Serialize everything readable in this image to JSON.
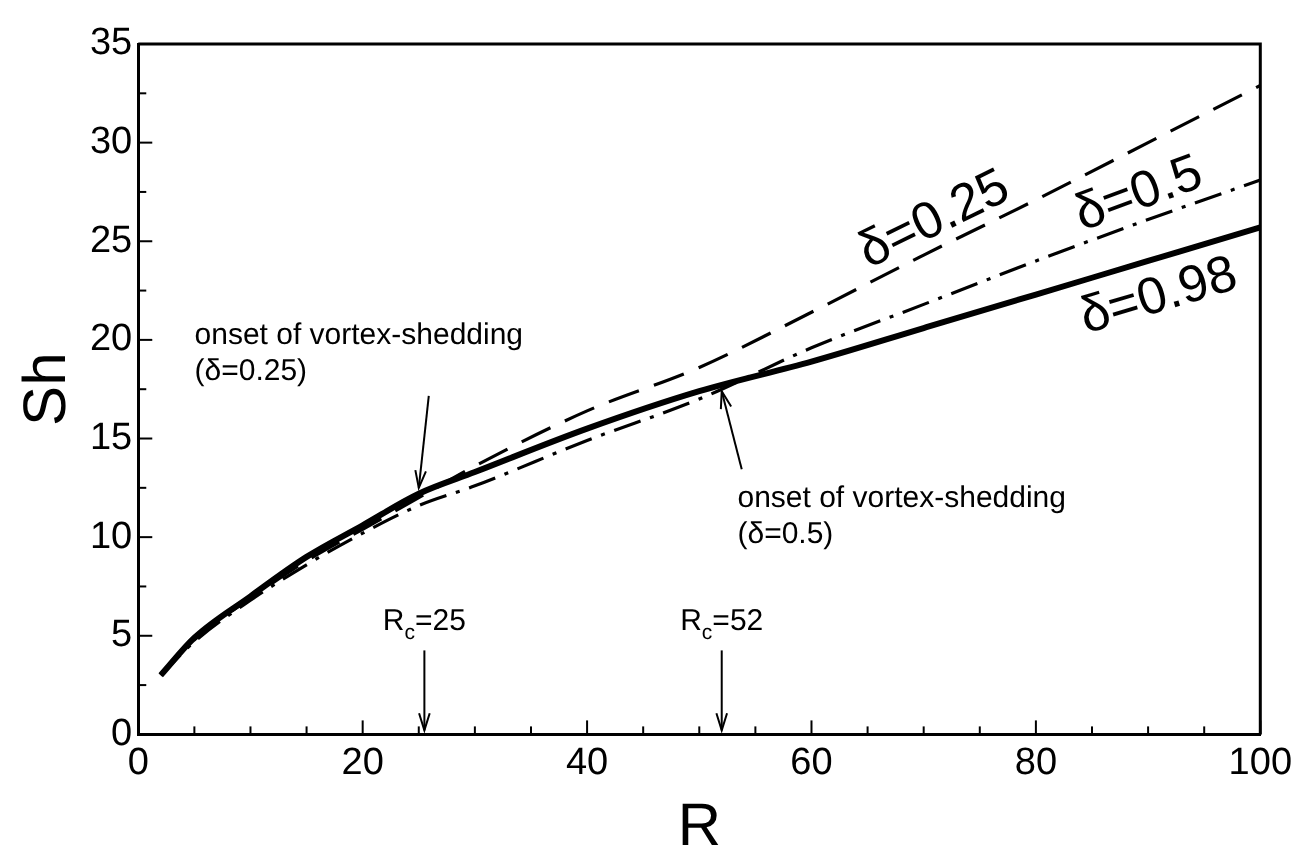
{
  "chart_data": {
    "type": "line",
    "xlabel": "R",
    "ylabel": "Sh",
    "xlim": [
      0,
      100
    ],
    "xticks": [
      0,
      {
        "value": 5,
        "label": null
      },
      {
        "value": 10,
        "label": null
      },
      {
        "value": 15,
        "label": null
      },
      20,
      {
        "value": 25,
        "label": null
      },
      {
        "value": 30,
        "label": null
      },
      {
        "value": 35,
        "label": null
      },
      40,
      {
        "value": 45,
        "label": null
      },
      {
        "value": 50,
        "label": null
      },
      {
        "value": 55,
        "label": null
      },
      60,
      {
        "value": 65,
        "label": null
      },
      {
        "value": 70,
        "label": null
      },
      {
        "value": 75,
        "label": null
      },
      80,
      {
        "value": 85,
        "label": null
      },
      {
        "value": 90,
        "label": null
      },
      {
        "value": 95,
        "label": null
      },
      100
    ],
    "ylim": [
      0,
      35
    ],
    "yticks": [
      0,
      {
        "value": 2.5,
        "label": null
      },
      5,
      {
        "value": 7.5,
        "label": null
      },
      10,
      {
        "value": 12.5,
        "label": null
      },
      15,
      {
        "value": 17.5,
        "label": null
      },
      20,
      {
        "value": 22.5,
        "label": null
      },
      25,
      {
        "value": 27.5,
        "label": null
      },
      30,
      {
        "value": 32.5,
        "label": null
      },
      35
    ],
    "grid": false,
    "legend": false,
    "marker": "none",
    "x": [
      2,
      5,
      10,
      15,
      20,
      25,
      30,
      40,
      50,
      60,
      70,
      80,
      90,
      100
    ],
    "series": [
      {
        "name": "δ=0.25",
        "color": "#000000",
        "line_style": "dashed",
        "values": [
          3.0,
          4.8,
          6.9,
          8.8,
          10.4,
          12.0,
          13.6,
          16.4,
          18.6,
          21.4,
          24.3,
          27.1,
          30.0,
          32.9
        ]
      },
      {
        "name": "δ=0.5",
        "color": "#000000",
        "line_style": "dashed",
        "values": [
          3.0,
          4.7,
          6.8,
          8.6,
          10.2,
          11.6,
          12.6,
          14.9,
          17.0,
          19.6,
          21.8,
          24.0,
          26.1,
          28.1
        ]
      },
      {
        "name": "δ=0.98",
        "color": "#000000",
        "line_style": "solid",
        "values": [
          3.0,
          4.9,
          7.0,
          9.0,
          10.6,
          12.2,
          13.3,
          15.5,
          17.4,
          18.9,
          20.6,
          22.3,
          24.0,
          25.7
        ]
      }
    ],
    "annotations": [
      {
        "text": "onset of vortex-shedding\n(δ=0.25)",
        "x": 25,
        "y": 12.5
      },
      {
        "text": "onset of vortex-shedding\n(δ=0.5)",
        "x": 52,
        "y": 17.4
      },
      "R$_{c}$=25",
      "R$_{c}$=52"
    ]
  }
}
